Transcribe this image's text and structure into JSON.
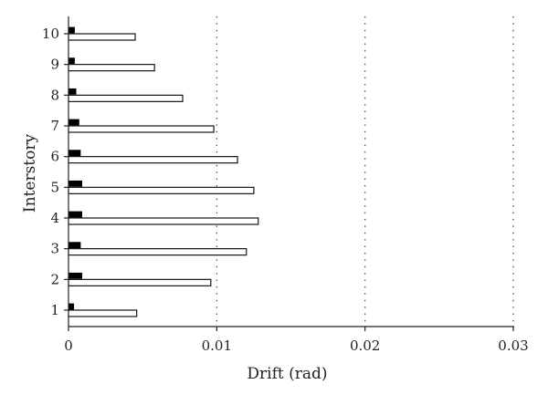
{
  "chart_data": {
    "type": "bar",
    "orientation": "horizontal",
    "title": "",
    "xlabel": "Drift (rad)",
    "ylabel": "Interstory",
    "xlim": [
      0,
      0.03
    ],
    "x_ticks": [
      "0",
      "0.01",
      "0.02",
      "0.03"
    ],
    "x_tick_values": [
      0,
      0.01,
      0.02,
      0.03
    ],
    "grid": "vertical dotted at x ticks",
    "legend": "none",
    "categories": [
      "1",
      "2",
      "3",
      "4",
      "5",
      "6",
      "7",
      "8",
      "9",
      "10"
    ],
    "series": [
      {
        "fill": "#000000",
        "values": [
          0.00035,
          0.0009,
          0.0008,
          0.0009,
          0.0009,
          0.0008,
          0.0007,
          0.0005,
          0.0004,
          0.0004
        ]
      },
      {
        "fill": "#ffffff",
        "values": [
          0.0046,
          0.0096,
          0.012,
          0.0128,
          0.0125,
          0.0114,
          0.0098,
          0.0077,
          0.0058,
          0.0045
        ]
      }
    ]
  }
}
